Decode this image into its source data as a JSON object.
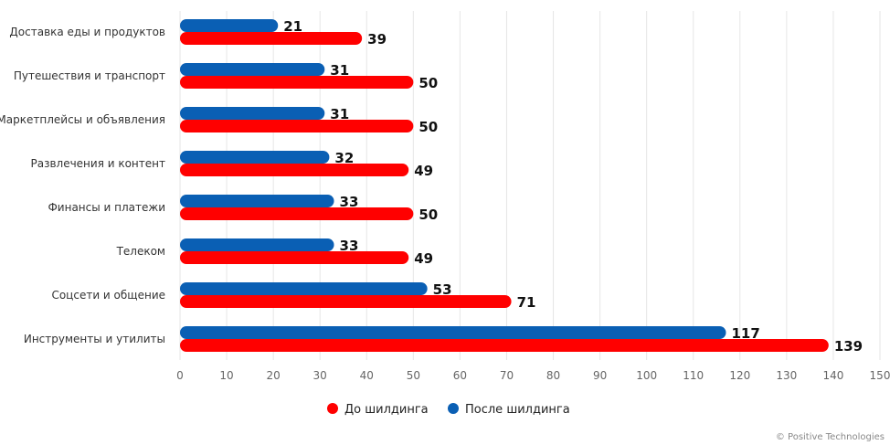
{
  "chart_data": {
    "type": "bar",
    "orientation": "horizontal",
    "title": "",
    "xlabel": "",
    "ylabel": "",
    "xlim": [
      0,
      150
    ],
    "xticks": [
      0,
      10,
      20,
      30,
      40,
      50,
      60,
      70,
      80,
      90,
      100,
      110,
      120,
      130,
      140,
      150
    ],
    "grid": true,
    "categories": [
      "Доставка еды и продуктов",
      "Путешествия и транспорт",
      "Маркетплейсы и объявления",
      "Развлечения и контент",
      "Финансы и платежи",
      "Телеком",
      "Соцсети и общение",
      "Инструменты и утилиты"
    ],
    "series": [
      {
        "name": "После шилдинга",
        "color": "#0a5fb4",
        "values": [
          21,
          31,
          31,
          32,
          33,
          33,
          53,
          117
        ]
      },
      {
        "name": "До шилдинга",
        "color": "#ff0000",
        "values": [
          39,
          50,
          50,
          49,
          50,
          49,
          71,
          139
        ]
      }
    ],
    "legend": {
      "placement": "bottom-center",
      "order": [
        "До шилдинга",
        "После шилдинга"
      ]
    },
    "copyright": "© Positive Technologies"
  }
}
